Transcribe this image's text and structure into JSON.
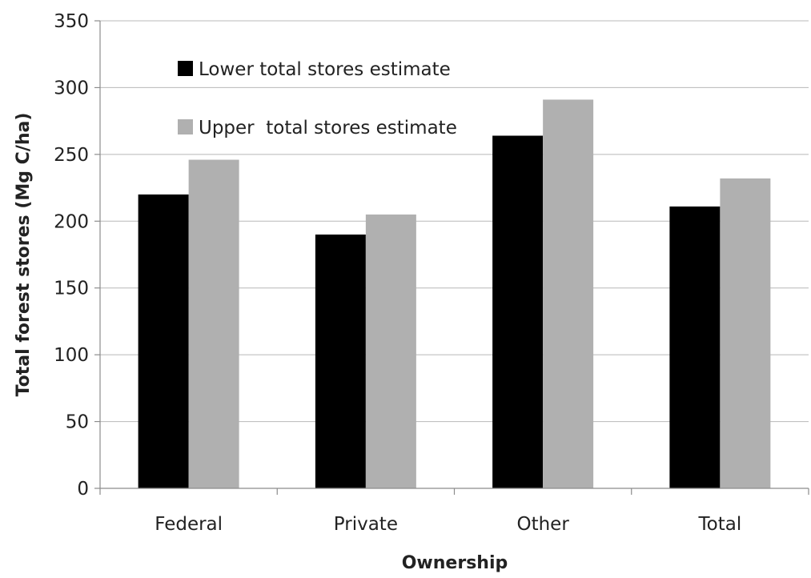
{
  "chart_data": {
    "type": "bar",
    "title": "",
    "xlabel": "Ownership",
    "ylabel": "Total forest stores (Mg C/ha)",
    "categories": [
      "Federal",
      "Private",
      "Other",
      "Total"
    ],
    "series": [
      {
        "name": "Lower total stores estimate",
        "color": "#000000",
        "values": [
          220,
          190,
          264,
          211
        ]
      },
      {
        "name": "Upper  total stores estimate",
        "color": "#b0b0b0",
        "values": [
          246,
          205,
          291,
          232
        ]
      }
    ],
    "ylim": [
      0,
      350
    ],
    "yticks": [
      "0",
      "50",
      "100",
      "150",
      "200",
      "250",
      "300",
      "350"
    ],
    "grid": true,
    "legend_position": "top-left"
  }
}
